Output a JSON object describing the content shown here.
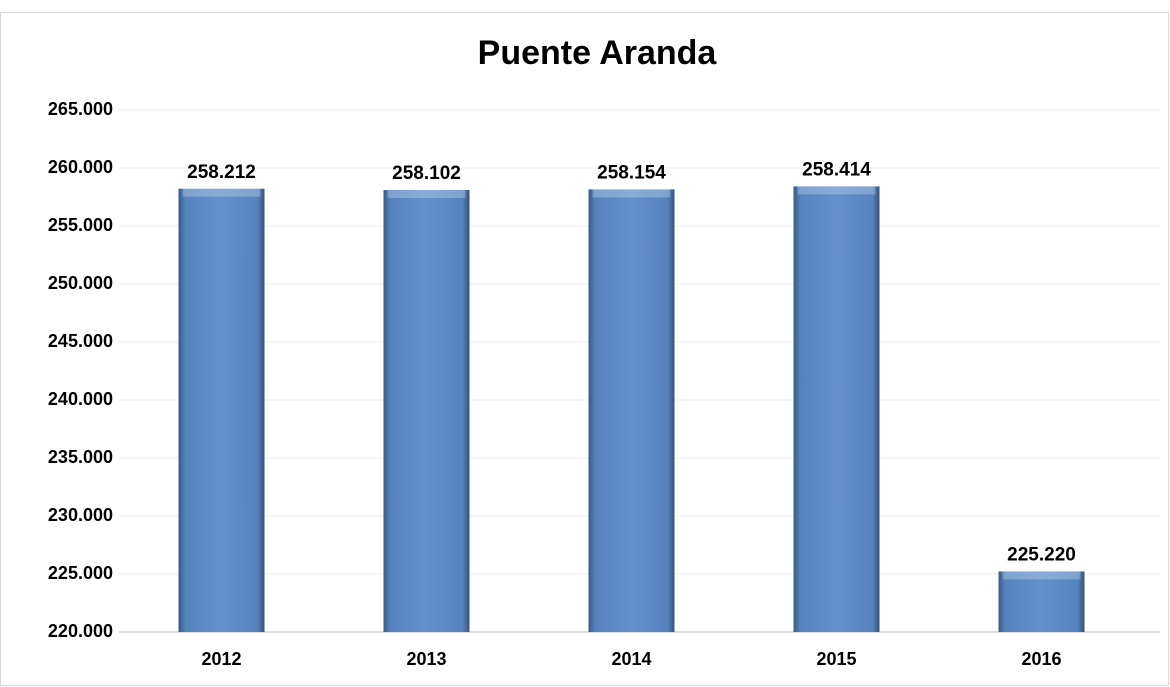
{
  "chart_data": {
    "type": "bar",
    "title": "Puente Aranda",
    "categories": [
      "2012",
      "2013",
      "2014",
      "2015",
      "2016"
    ],
    "values": [
      258212,
      258102,
      258154,
      258414,
      225220
    ],
    "value_labels": [
      "258.212",
      "258.102",
      "258.154",
      "258.414",
      "225.220"
    ],
    "color": "#5a8ac8",
    "ylim": [
      220000,
      265000
    ],
    "yticks": [
      {
        "value": 220000,
        "label": "220.000"
      },
      {
        "value": 225000,
        "label": "225.000"
      },
      {
        "value": 230000,
        "label": "230.000"
      },
      {
        "value": 235000,
        "label": "235.000"
      },
      {
        "value": 240000,
        "label": "240.000"
      },
      {
        "value": 245000,
        "label": "245.000"
      },
      {
        "value": 250000,
        "label": "250.000"
      },
      {
        "value": 255000,
        "label": "255.000"
      },
      {
        "value": 260000,
        "label": "260.000"
      },
      {
        "value": 265000,
        "label": "265.000"
      }
    ],
    "grid": true
  }
}
